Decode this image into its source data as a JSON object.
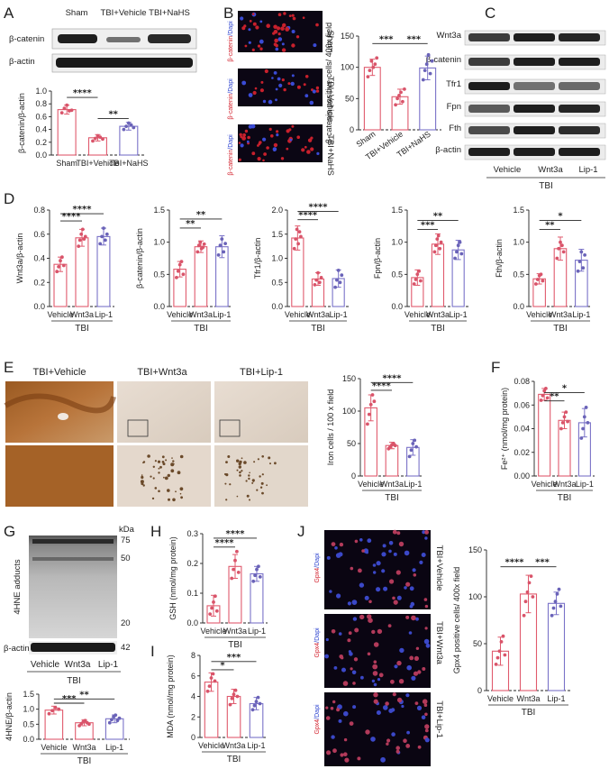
{
  "colors": {
    "red": "#e05a6d",
    "redpt": "#d9546a",
    "purple": "#7a72c8",
    "purplept": "#6a63b8",
    "gray": "#888888",
    "blot_bg": "#f0f0f0",
    "blot_band": "#1a1a1a",
    "fluo_red": "#c8202c",
    "fluo_blue": "#3a4bd6"
  },
  "panel_letters": [
    "A",
    "B",
    "C",
    "D",
    "E",
    "F",
    "G",
    "H",
    "I",
    "J"
  ],
  "panelA": {
    "blot_headers": [
      "Sham",
      "TBI+Vehicle",
      "TBI+NaHS"
    ],
    "blot_rows": [
      "β-catenin",
      "β-actin"
    ]
  },
  "panelB": {
    "image_rows": [
      "Sham",
      "TBI+Vehicle",
      "TBI+NaHS"
    ],
    "stain_label": "β-catenin/Dapi",
    "stain_parts": [
      "β-catenin",
      "/Dapi"
    ]
  },
  "panelC": {
    "blot_rows": [
      "Wnt3a",
      "β-catenin",
      "Tfr1",
      "Fpn",
      "Fth",
      "β-actin"
    ],
    "x_groups": [
      "Vehicle",
      "Wnt3a",
      "Lip-1"
    ],
    "group_label": "TBI"
  },
  "panelE": {
    "image_titles": [
      "TBI+Vehicle",
      "TBI+Wnt3a",
      "TBI+Lip-1"
    ]
  },
  "panelG": {
    "blot_label": "4HNE adducts",
    "kda_label": "kDa",
    "kda_marks": [
      "75",
      "50",
      "20",
      "42"
    ],
    "loading_label": "β-actin",
    "x_groups": [
      "Vehicle",
      "Wnt3a",
      "Lip-1"
    ],
    "group_label": "TBI"
  },
  "panelJ": {
    "image_rows": [
      "TBI+Vehicle",
      "TBI+Wnt3a",
      "TBI+Lip-1"
    ],
    "stain_label": "Gpx4/Dapi",
    "stain_parts": [
      "Gpx4",
      "/Dapi"
    ]
  },
  "chart_data": [
    {
      "id": "A",
      "type": "bar",
      "categories": [
        "Sham",
        "TBI+Vehicle",
        "TBI+NaHS"
      ],
      "values": [
        0.71,
        0.27,
        0.45
      ],
      "sd": [
        0.07,
        0.05,
        0.06
      ],
      "points": [
        [
          0.66,
          0.73,
          0.78,
          0.69,
          0.7
        ],
        [
          0.22,
          0.26,
          0.3,
          0.28,
          0.25
        ],
        [
          0.4,
          0.45,
          0.5,
          0.47,
          0.43
        ]
      ],
      "ylabel": "β-catenin/β-actin",
      "ylim": [
        0,
        1.0
      ],
      "yticks": [
        "0.0",
        "0.2",
        "0.4",
        "0.6",
        "0.8",
        "1.0"
      ],
      "yticks_num": [
        0,
        0.2,
        0.4,
        0.6,
        0.8,
        1.0
      ],
      "colors": [
        "red",
        "red",
        "purple"
      ],
      "sig": [
        {
          "from": 0,
          "to": 1,
          "label": "****",
          "y": 0.9
        },
        {
          "from": 1,
          "to": 2,
          "label": "**",
          "y": 0.57
        }
      ],
      "group_label": ""
    },
    {
      "id": "B",
      "type": "bar",
      "categories": [
        "Sham",
        "TBI+Vehicle",
        "TBI+NaHS"
      ],
      "values": [
        100,
        53,
        99
      ],
      "sd": [
        13,
        12,
        19
      ],
      "points": [
        [
          85,
          95,
          110,
          100,
          105,
          115
        ],
        [
          40,
          50,
          55,
          60,
          45,
          65
        ],
        [
          80,
          95,
          105,
          120,
          90,
          110
        ]
      ],
      "ylabel": "β-catenin positive cells/ 400x field",
      "ylim": [
        0,
        150
      ],
      "yticks": [
        "0",
        "50",
        "100",
        "150"
      ],
      "yticks_num": [
        0,
        50,
        100,
        150
      ],
      "colors": [
        "red",
        "red",
        "purple"
      ],
      "sig": [
        {
          "from": 0,
          "to": 1,
          "label": "***",
          "y": 138
        },
        {
          "from": 1,
          "to": 2,
          "label": "***",
          "y": 138
        }
      ],
      "group_label": ""
    },
    {
      "id": "D1",
      "type": "bar",
      "categories": [
        "Vehicle",
        "Wnt3a",
        "Lip-1"
      ],
      "values": [
        0.35,
        0.57,
        0.58
      ],
      "sd": [
        0.06,
        0.07,
        0.07
      ],
      "points": [
        [
          0.29,
          0.33,
          0.38,
          0.41,
          0.34
        ],
        [
          0.5,
          0.55,
          0.6,
          0.64,
          0.56,
          0.58
        ],
        [
          0.52,
          0.58,
          0.65,
          0.55,
          0.6
        ]
      ],
      "ylabel": "Wnt3a/β-actin",
      "ylim": [
        0,
        0.8
      ],
      "yticks": [
        "0.0",
        "0.2",
        "0.4",
        "0.6",
        "0.8"
      ],
      "yticks_num": [
        0,
        0.2,
        0.4,
        0.6,
        0.8
      ],
      "colors": [
        "red",
        "red",
        "purple"
      ],
      "sig": [
        {
          "from": 0,
          "to": 1,
          "label": "****",
          "y": 0.71
        },
        {
          "from": 0,
          "to": 2,
          "label": "****",
          "y": 0.77
        }
      ],
      "group_label": "TBI"
    },
    {
      "id": "D2",
      "type": "bar",
      "categories": [
        "Vehicle",
        "Wnt3a",
        "Lip-1"
      ],
      "values": [
        0.58,
        0.93,
        0.93
      ],
      "sd": [
        0.12,
        0.09,
        0.17
      ],
      "points": [
        [
          0.45,
          0.55,
          0.65,
          0.7,
          0.5
        ],
        [
          0.85,
          0.95,
          1.0,
          0.9,
          0.92,
          0.97
        ],
        [
          0.8,
          0.95,
          1.05,
          0.85,
          0.98
        ]
      ],
      "ylabel": "β-catenin/β-actin",
      "ylim": [
        0,
        1.5
      ],
      "yticks": [
        "0.0",
        "0.5",
        "1.0",
        "1.5"
      ],
      "yticks_num": [
        0,
        0.5,
        1.0,
        1.5
      ],
      "colors": [
        "red",
        "red",
        "purple"
      ],
      "sig": [
        {
          "from": 0,
          "to": 1,
          "label": "**",
          "y": 1.22
        },
        {
          "from": 0,
          "to": 2,
          "label": "**",
          "y": 1.36
        }
      ],
      "group_label": "TBI"
    },
    {
      "id": "D3",
      "type": "bar",
      "categories": [
        "Vehicle",
        "Wnt3a",
        "Lip-1"
      ],
      "values": [
        1.42,
        0.57,
        0.58
      ],
      "sd": [
        0.25,
        0.13,
        0.18
      ],
      "points": [
        [
          1.2,
          1.4,
          1.6,
          1.3,
          1.55,
          1.45
        ],
        [
          0.45,
          0.55,
          0.7,
          0.5,
          0.6
        ],
        [
          0.4,
          0.55,
          0.75,
          0.5,
          0.65
        ]
      ],
      "ylabel": "Tfr1/β-actin",
      "ylim": [
        0,
        2.0
      ],
      "yticks": [
        "0.0",
        "0.5",
        "1.0",
        "1.5",
        "2.0"
      ],
      "yticks_num": [
        0,
        0.5,
        1.0,
        1.5,
        2.0
      ],
      "colors": [
        "red",
        "red",
        "purple"
      ],
      "sig": [
        {
          "from": 0,
          "to": 1,
          "label": "****",
          "y": 1.8
        },
        {
          "from": 0,
          "to": 2,
          "label": "****",
          "y": 1.97
        }
      ],
      "group_label": "TBI"
    },
    {
      "id": "D4",
      "type": "bar",
      "categories": [
        "Vehicle",
        "Wnt3a",
        "Lip-1"
      ],
      "values": [
        0.45,
        0.97,
        0.88
      ],
      "sd": [
        0.12,
        0.16,
        0.15
      ],
      "points": [
        [
          0.35,
          0.42,
          0.5,
          0.55,
          0.4
        ],
        [
          0.85,
          0.95,
          1.05,
          1.1,
          0.9,
          1.0
        ],
        [
          0.75,
          0.85,
          0.95,
          1.0,
          0.82
        ]
      ],
      "ylabel": "Fpn/β-actin",
      "ylim": [
        0,
        1.5
      ],
      "yticks": [
        "0.0",
        "0.5",
        "1.0",
        "1.5"
      ],
      "yticks_num": [
        0,
        0.5,
        1.0,
        1.5
      ],
      "colors": [
        "red",
        "red",
        "purple"
      ],
      "sig": [
        {
          "from": 0,
          "to": 1,
          "label": "***",
          "y": 1.2
        },
        {
          "from": 0,
          "to": 2,
          "label": "**",
          "y": 1.34
        }
      ],
      "group_label": "TBI"
    },
    {
      "id": "D5",
      "type": "bar",
      "categories": [
        "Vehicle",
        "Wnt3a",
        "Lip-1"
      ],
      "values": [
        0.43,
        0.9,
        0.72
      ],
      "sd": [
        0.08,
        0.18,
        0.17
      ],
      "points": [
        [
          0.35,
          0.42,
          0.48,
          0.5,
          0.4
        ],
        [
          0.75,
          0.9,
          1.0,
          0.95,
          0.85
        ],
        [
          0.55,
          0.7,
          0.85,
          0.6,
          0.8
        ]
      ],
      "ylabel": "Fth/β-actin",
      "ylim": [
        0,
        1.5
      ],
      "yticks": [
        "0.0",
        "0.5",
        "1.0",
        "1.5"
      ],
      "yticks_num": [
        0,
        0.5,
        1.0,
        1.5
      ],
      "colors": [
        "red",
        "red",
        "purple"
      ],
      "sig": [
        {
          "from": 0,
          "to": 1,
          "label": "**",
          "y": 1.2
        },
        {
          "from": 0,
          "to": 2,
          "label": "*",
          "y": 1.34
        }
      ],
      "group_label": "TBI"
    },
    {
      "id": "E",
      "type": "bar",
      "categories": [
        "Vehicle",
        "Wnt3a",
        "Lip-1"
      ],
      "values": [
        105,
        47,
        44
      ],
      "sd": [
        20,
        5,
        12
      ],
      "points": [
        [
          80,
          95,
          110,
          125,
          115
        ],
        [
          42,
          45,
          48,
          50,
          47
        ],
        [
          30,
          40,
          50,
          55,
          45
        ]
      ],
      "ylabel": "Iron cells / 100 x field",
      "ylim": [
        0,
        150
      ],
      "yticks": [
        "0",
        "50",
        "100",
        "150"
      ],
      "yticks_num": [
        0,
        50,
        100,
        150
      ],
      "colors": [
        "red",
        "red",
        "purple"
      ],
      "sig": [
        {
          "from": 0,
          "to": 1,
          "label": "****",
          "y": 132
        },
        {
          "from": 0,
          "to": 2,
          "label": "****",
          "y": 144
        }
      ],
      "group_label": "TBI"
    },
    {
      "id": "F",
      "type": "bar",
      "categories": [
        "Vehicle",
        "Wnt3a",
        "Lip-1"
      ],
      "values": [
        0.069,
        0.047,
        0.045
      ],
      "sd": [
        0.005,
        0.007,
        0.012
      ],
      "points": [
        [
          0.064,
          0.068,
          0.072,
          0.074,
          0.066
        ],
        [
          0.04,
          0.045,
          0.05,
          0.054,
          0.046
        ],
        [
          0.032,
          0.04,
          0.05,
          0.058,
          0.045
        ]
      ],
      "ylabel": "Fe²⁺ (nmol/mg protein)",
      "ylim": [
        0,
        0.08
      ],
      "yticks": [
        "0.00",
        "0.02",
        "0.04",
        "0.06",
        "0.08"
      ],
      "yticks_num": [
        0,
        0.02,
        0.04,
        0.06,
        0.08
      ],
      "colors": [
        "red",
        "red",
        "purple"
      ],
      "sig": [
        {
          "from": 0,
          "to": 1,
          "label": "**",
          "y": 0.0635
        },
        {
          "from": 0,
          "to": 2,
          "label": "*",
          "y": 0.0705
        }
      ],
      "group_label": "TBI"
    },
    {
      "id": "G",
      "type": "bar",
      "categories": [
        "Vehicle",
        "Wnt3a",
        "Lip-1"
      ],
      "values": [
        0.97,
        0.55,
        0.68
      ],
      "sd": [
        0.13,
        0.1,
        0.13
      ],
      "points": [
        [
          0.85,
          0.95,
          1.05,
          1.0
        ],
        [
          0.45,
          0.52,
          0.58,
          0.62,
          0.55,
          0.5
        ],
        [
          0.55,
          0.65,
          0.75,
          0.8,
          0.62,
          0.7
        ]
      ],
      "ylabel": "4HNE/β-actin",
      "ylim": [
        0,
        1.5
      ],
      "yticks": [
        "0.0",
        "0.5",
        "1.0",
        "1.5"
      ],
      "yticks_num": [
        0,
        0.5,
        1.0,
        1.5
      ],
      "colors": [
        "red",
        "red",
        "purple"
      ],
      "sig": [
        {
          "from": 0,
          "to": 1,
          "label": "***",
          "y": 1.2
        },
        {
          "from": 0,
          "to": 2,
          "label": "**",
          "y": 1.34
        }
      ],
      "group_label": "TBI"
    },
    {
      "id": "H",
      "type": "bar",
      "categories": [
        "Vehicle",
        "Wnt3a",
        "Lip-1"
      ],
      "values": [
        0.058,
        0.19,
        0.165
      ],
      "sd": [
        0.035,
        0.04,
        0.025
      ],
      "points": [
        [
          0.03,
          0.05,
          0.07,
          0.09,
          0.04
        ],
        [
          0.15,
          0.18,
          0.21,
          0.24,
          0.17
        ],
        [
          0.14,
          0.16,
          0.18,
          0.19,
          0.155
        ]
      ],
      "ylabel": "GSH (nmol/mg protein)",
      "ylim": [
        0,
        0.3
      ],
      "yticks": [
        "0.0",
        "0.1",
        "0.2",
        "0.3"
      ],
      "yticks_num": [
        0,
        0.1,
        0.2,
        0.3
      ],
      "colors": [
        "red",
        "red",
        "purple"
      ],
      "sig": [
        {
          "from": 0,
          "to": 1,
          "label": "****",
          "y": 0.255
        },
        {
          "from": 0,
          "to": 2,
          "label": "****",
          "y": 0.285
        }
      ],
      "group_label": "TBI"
    },
    {
      "id": "I",
      "type": "bar",
      "categories": [
        "Vehicle",
        "Wnt3a",
        "Lip-1"
      ],
      "values": [
        5.4,
        4.0,
        3.3
      ],
      "sd": [
        0.9,
        0.7,
        0.6
      ],
      "points": [
        [
          4.5,
          5.0,
          5.8,
          6.2,
          5.5
        ],
        [
          3.2,
          3.8,
          4.2,
          4.6,
          4.0
        ],
        [
          2.7,
          3.1,
          3.5,
          3.9,
          3.3
        ]
      ],
      "ylabel": "MDA (nmol/mg protein)",
      "ylim": [
        0,
        8
      ],
      "yticks": [
        "0",
        "2",
        "4",
        "6",
        "8"
      ],
      "yticks_num": [
        0,
        2,
        4,
        6,
        8
      ],
      "colors": [
        "red",
        "red",
        "purple"
      ],
      "sig": [
        {
          "from": 0,
          "to": 1,
          "label": "*",
          "y": 6.6
        },
        {
          "from": 0,
          "to": 2,
          "label": "***",
          "y": 7.4
        }
      ],
      "group_label": "TBI"
    },
    {
      "id": "J",
      "type": "bar",
      "categories": [
        "Vehicle",
        "Wnt3a",
        "Lip-1"
      ],
      "values": [
        42,
        103,
        93
      ],
      "sd": [
        15,
        20,
        12
      ],
      "points": [
        [
          28,
          35,
          42,
          52,
          58,
          38
        ],
        [
          80,
          95,
          105,
          115,
          122,
          100
        ],
        [
          80,
          88,
          95,
          103,
          108,
          90
        ]
      ],
      "ylabel": "Gpx4 positive cells/ 400x field",
      "ylim": [
        0,
        150
      ],
      "yticks": [
        "0",
        "50",
        "100",
        "150"
      ],
      "yticks_num": [
        0,
        50,
        100,
        150
      ],
      "colors": [
        "red",
        "red",
        "purple"
      ],
      "sig": [
        {
          "from": 0,
          "to": 1,
          "label": "****",
          "y": 132
        },
        {
          "from": 1,
          "to": 2,
          "label": "***",
          "y": 132
        }
      ],
      "group_label": "TBI"
    }
  ]
}
